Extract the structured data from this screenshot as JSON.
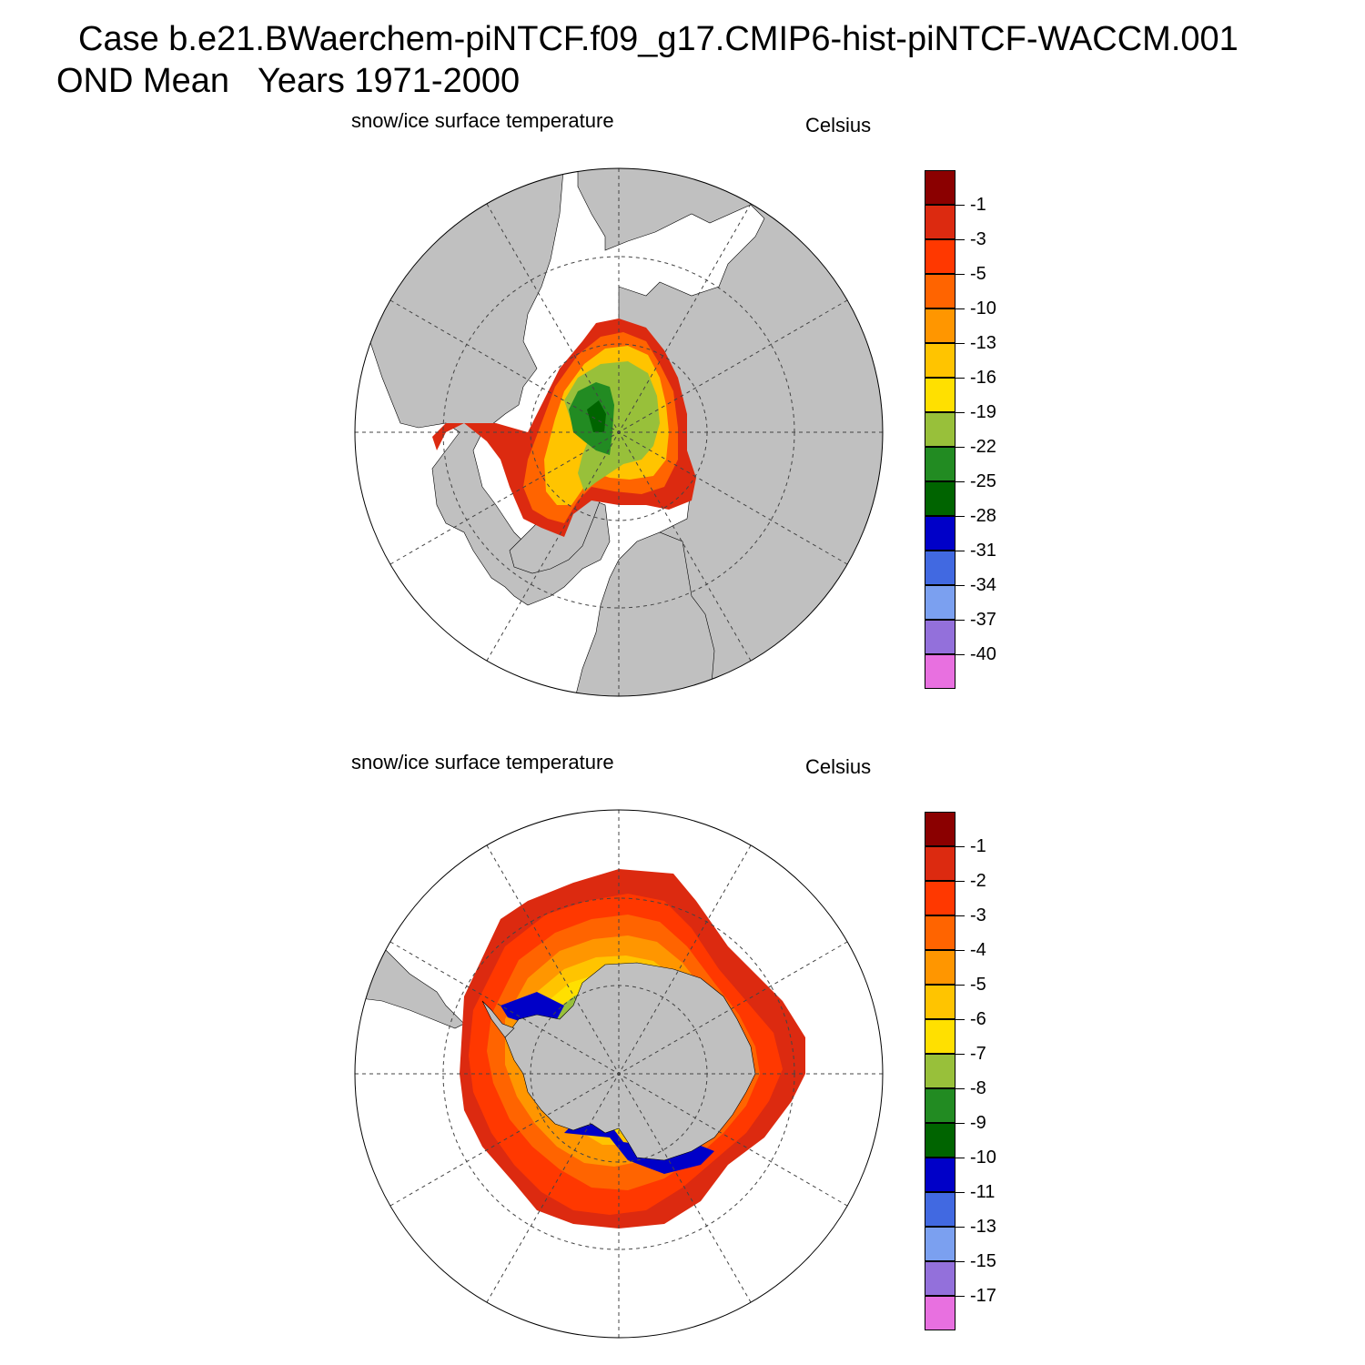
{
  "header": {
    "title_line1": "Case b.e21.BWaerchem-piNTCF.f09_g17.CMIP6-hist-piNTCF-WACCM.001",
    "title_line2": "OND Mean   Years 1971-2000"
  },
  "panels": [
    {
      "id": "north",
      "variable_label": "snow/ice surface temperature",
      "units_label": "Celsius",
      "hemisphere": "northern",
      "colorbar": {
        "labels": [
          "-1",
          "-3",
          "-5",
          "-10",
          "-13",
          "-16",
          "-19",
          "-22",
          "-25",
          "-28",
          "-31",
          "-34",
          "-37",
          "-40"
        ],
        "colors": [
          "#8b0000",
          "#dc2a10",
          "#ff3800",
          "#ff6400",
          "#ff9600",
          "#ffc400",
          "#ffe000",
          "#98c03a",
          "#228b22",
          "#006400",
          "#0000c8",
          "#4169e1",
          "#7ba0f0",
          "#9370db",
          "#e870e0"
        ]
      }
    },
    {
      "id": "south",
      "variable_label": "snow/ice surface temperature",
      "units_label": "Celsius",
      "hemisphere": "southern",
      "colorbar": {
        "labels": [
          "-1",
          "-2",
          "-3",
          "-4",
          "-5",
          "-6",
          "-7",
          "-8",
          "-9",
          "-10",
          "-11",
          "-13",
          "-15",
          "-17"
        ],
        "colors": [
          "#8b0000",
          "#dc2a10",
          "#ff3800",
          "#ff6400",
          "#ff9600",
          "#ffc400",
          "#ffe000",
          "#98c03a",
          "#228b22",
          "#006400",
          "#0000c8",
          "#4169e1",
          "#7ba0f0",
          "#9370db",
          "#e870e0"
        ]
      }
    }
  ],
  "map_colors": {
    "land": "#c0c0c0",
    "ocean": "#ffffff",
    "graticule": "#444444"
  }
}
